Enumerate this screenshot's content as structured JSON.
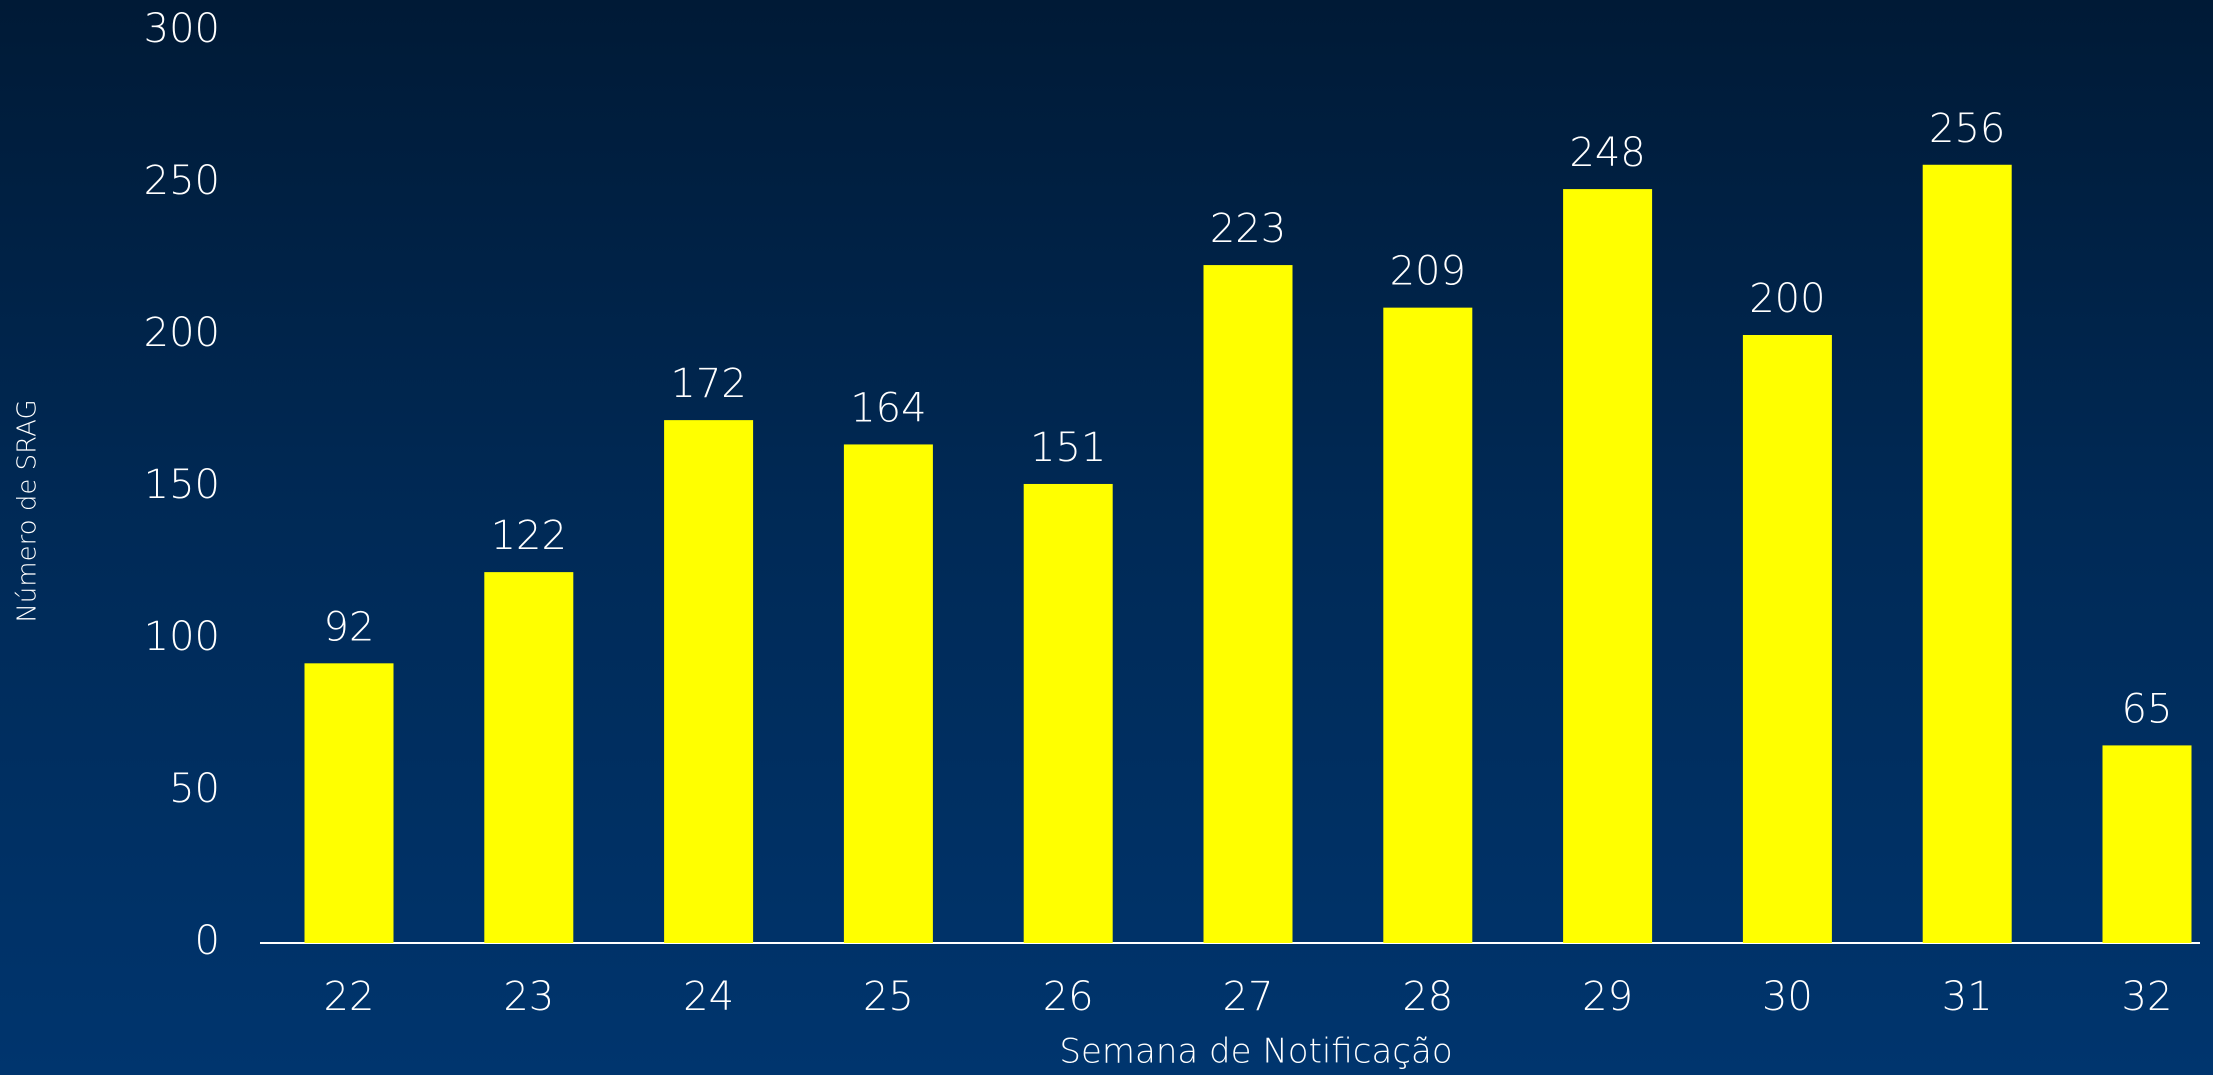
{
  "chart_data": {
    "type": "bar",
    "x_label": "Semana de Notificação",
    "y_label": "Número de SRAG",
    "categories": [
      "22",
      "23",
      "24",
      "25",
      "26",
      "27",
      "28",
      "29",
      "30",
      "31",
      "32"
    ],
    "values": [
      92,
      122,
      172,
      164,
      151,
      223,
      209,
      248,
      200,
      256,
      65
    ],
    "color": "#ffff00",
    "ylim": [
      0,
      300
    ],
    "yticks": [
      0,
      50,
      100,
      150,
      200,
      250,
      300
    ],
    "grid": false
  }
}
